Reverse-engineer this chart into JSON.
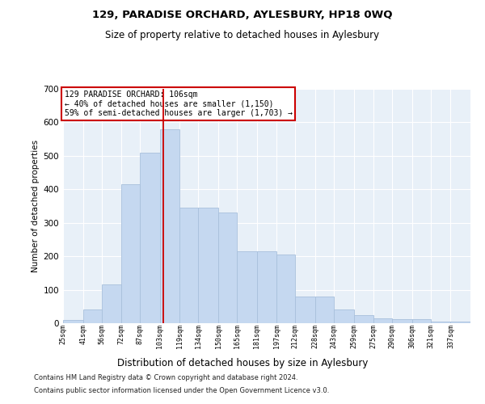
{
  "title": "129, PARADISE ORCHARD, AYLESBURY, HP18 0WQ",
  "subtitle": "Size of property relative to detached houses in Aylesbury",
  "xlabel": "Distribution of detached houses by size in Aylesbury",
  "ylabel": "Number of detached properties",
  "bar_color": "#c5d8f0",
  "bar_edge_color": "#a8c0dc",
  "background_color": "#e8f0f8",
  "grid_color": "#ffffff",
  "property_line_x": 106,
  "property_line_color": "#cc0000",
  "bin_edges": [
    25,
    41,
    56,
    72,
    87,
    103,
    119,
    134,
    150,
    165,
    181,
    197,
    212,
    228,
    243,
    259,
    275,
    290,
    306,
    321,
    337,
    353
  ],
  "bar_heights": [
    10,
    40,
    115,
    415,
    510,
    580,
    345,
    345,
    330,
    215,
    215,
    205,
    80,
    80,
    40,
    25,
    15,
    13,
    13,
    5,
    5
  ],
  "ylim": [
    0,
    700
  ],
  "yticks": [
    0,
    100,
    200,
    300,
    400,
    500,
    600,
    700
  ],
  "annotation_text": "129 PARADISE ORCHARD: 106sqm\n← 40% of detached houses are smaller (1,150)\n59% of semi-detached houses are larger (1,703) →",
  "annotation_box_facecolor": "#ffffff",
  "annotation_box_edgecolor": "#cc0000",
  "footer_line1": "Contains HM Land Registry data © Crown copyright and database right 2024.",
  "footer_line2": "Contains public sector information licensed under the Open Government Licence v3.0."
}
